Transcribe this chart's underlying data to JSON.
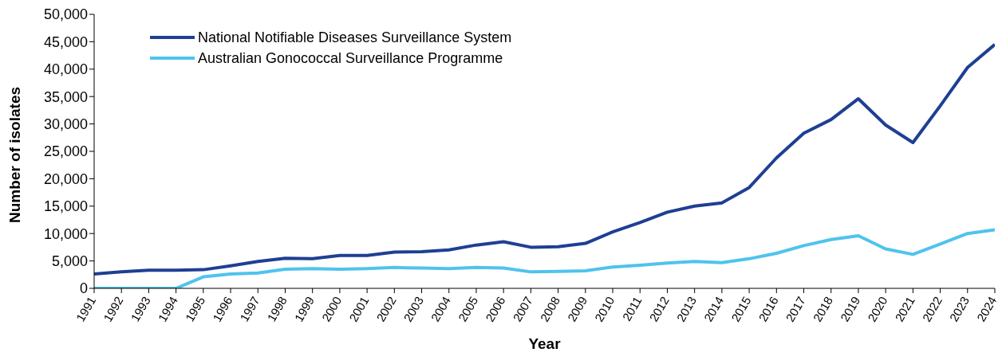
{
  "chart_data": {
    "type": "line",
    "xlabel": "Year",
    "ylabel": "Number of isolates",
    "x": [
      1991,
      1992,
      1993,
      1994,
      1995,
      1996,
      1997,
      1998,
      1999,
      2000,
      2001,
      2002,
      2003,
      2004,
      2005,
      2006,
      2007,
      2008,
      2009,
      2010,
      2011,
      2012,
      2013,
      2014,
      2015,
      2016,
      2017,
      2018,
      2019,
      2020,
      2021,
      2022,
      2023,
      2024
    ],
    "series": [
      {
        "name": "National Notifiable Diseases Surveillance System",
        "color": "#1f3f93",
        "values": [
          2600,
          3000,
          3300,
          3300,
          3400,
          4100,
          4900,
          5500,
          5400,
          6000,
          6000,
          6600,
          6700,
          7000,
          7900,
          8500,
          7500,
          7600,
          8200,
          10300,
          12000,
          13900,
          15000,
          15600,
          18400,
          23800,
          28300,
          30800,
          34600,
          29800,
          26600,
          33300,
          40300,
          44500
        ]
      },
      {
        "name": "Australian Gonococcal Surveillance Programme",
        "color": "#4fc3ee",
        "values": [
          0,
          0,
          0,
          0,
          2100,
          2600,
          2800,
          3500,
          3600,
          3500,
          3600,
          3800,
          3700,
          3600,
          3800,
          3700,
          3000,
          3100,
          3200,
          3900,
          4200,
          4600,
          4900,
          4700,
          5400,
          6400,
          7800,
          8900,
          9600,
          7200,
          6200,
          8100,
          10000,
          10700
        ]
      }
    ],
    "xlim": [
      1991,
      2024
    ],
    "xticks": [
      1991,
      1992,
      1993,
      1994,
      1995,
      1996,
      1997,
      1998,
      1999,
      2000,
      2001,
      2002,
      2003,
      2004,
      2005,
      2006,
      2007,
      2008,
      2009,
      2010,
      2011,
      2012,
      2013,
      2014,
      2015,
      2016,
      2017,
      2018,
      2019,
      2020,
      2021,
      2022,
      2023,
      2024
    ],
    "ylim": [
      0,
      50000
    ],
    "yticks": [
      {
        "value": 0,
        "label": "0"
      },
      {
        "value": 5000,
        "label": "5,000"
      },
      {
        "value": 10000,
        "label": "10,000"
      },
      {
        "value": 15000,
        "label": "15,000"
      },
      {
        "value": 20000,
        "label": "20,000"
      },
      {
        "value": 25000,
        "label": "25,000"
      },
      {
        "value": 30000,
        "label": "30,000"
      },
      {
        "value": 35000,
        "label": "35,000"
      },
      {
        "value": 40000,
        "label": "40,000"
      },
      {
        "value": 45000,
        "label": "45,000"
      },
      {
        "value": 50000,
        "label": "50,000"
      }
    ],
    "grid": false,
    "legend": "top left",
    "marker": "none",
    "line_style": "solid"
  }
}
